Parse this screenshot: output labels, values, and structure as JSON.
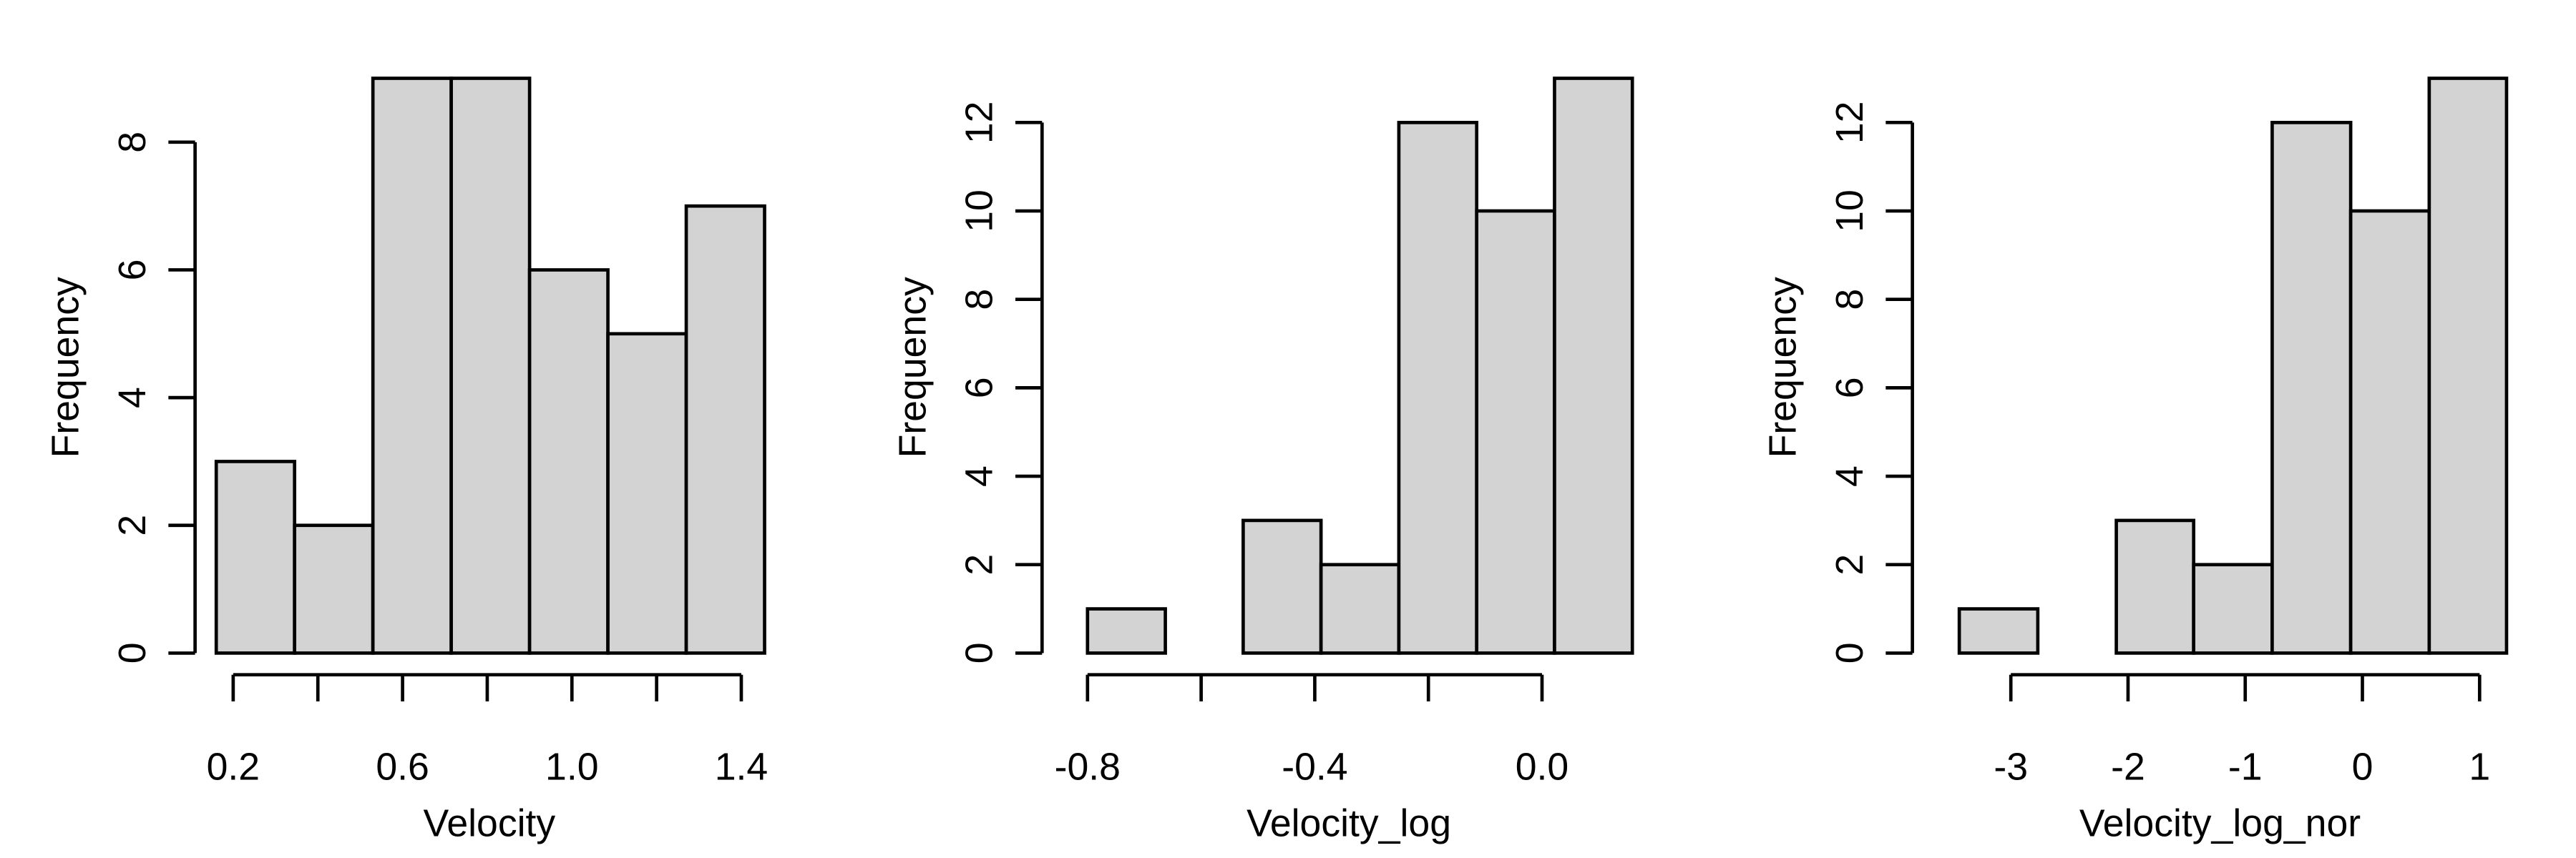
{
  "chart_data": [
    {
      "type": "histogram",
      "xlabel": "Velocity",
      "ylabel": "Frequency",
      "color": "#d3d3d3",
      "bins": [
        0.16,
        0.345,
        0.53,
        0.715,
        0.9,
        1.085,
        1.27,
        1.455
      ],
      "values": [
        3,
        2,
        9,
        9,
        6,
        5,
        7
      ],
      "xlim": [
        0.11,
        1.5
      ],
      "ylim": [
        0,
        9
      ],
      "xticks": [
        0.2,
        {
          "value": 0.4,
          "label": null
        },
        0.6,
        {
          "value": 0.8,
          "label": null
        },
        {
          "value": 1.0,
          "label": "1.0"
        },
        {
          "value": 1.2,
          "label": null
        },
        1.4
      ],
      "yticks": [
        0,
        2,
        4,
        6,
        8
      ]
    },
    {
      "type": "histogram",
      "xlabel": "Velocity_log",
      "ylabel": "Frequency",
      "color": "#d3d3d3",
      "bins": [
        -0.8,
        -0.663,
        -0.526,
        -0.389,
        -0.252,
        -0.115,
        0.022,
        0.159
      ],
      "values": [
        1,
        0,
        3,
        2,
        12,
        10,
        13
      ],
      "xlim": [
        -0.88,
        0.2
      ],
      "ylim": [
        0,
        13
      ],
      "xticks": [
        -0.8,
        {
          "value": -0.6,
          "label": null
        },
        -0.4,
        {
          "value": -0.2,
          "label": null
        },
        {
          "value": 0.0,
          "label": "0.0"
        }
      ],
      "yticks": [
        0,
        2,
        4,
        6,
        8,
        10,
        12
      ]
    },
    {
      "type": "histogram",
      "xlabel": "Velocity_log_nor",
      "ylabel": "Frequency",
      "color": "#d3d3d3",
      "bins": [
        -3.44,
        -2.77,
        -2.1,
        -1.44,
        -0.77,
        -0.1,
        0.57,
        1.23
      ],
      "values": [
        1,
        0,
        3,
        2,
        12,
        10,
        13
      ],
      "xlim": [
        -3.84,
        1.41
      ],
      "ylim": [
        0,
        13
      ],
      "xticks": [
        -3,
        -2,
        -1,
        0,
        1
      ],
      "yticks": [
        0,
        2,
        4,
        6,
        8,
        10,
        12
      ]
    }
  ]
}
